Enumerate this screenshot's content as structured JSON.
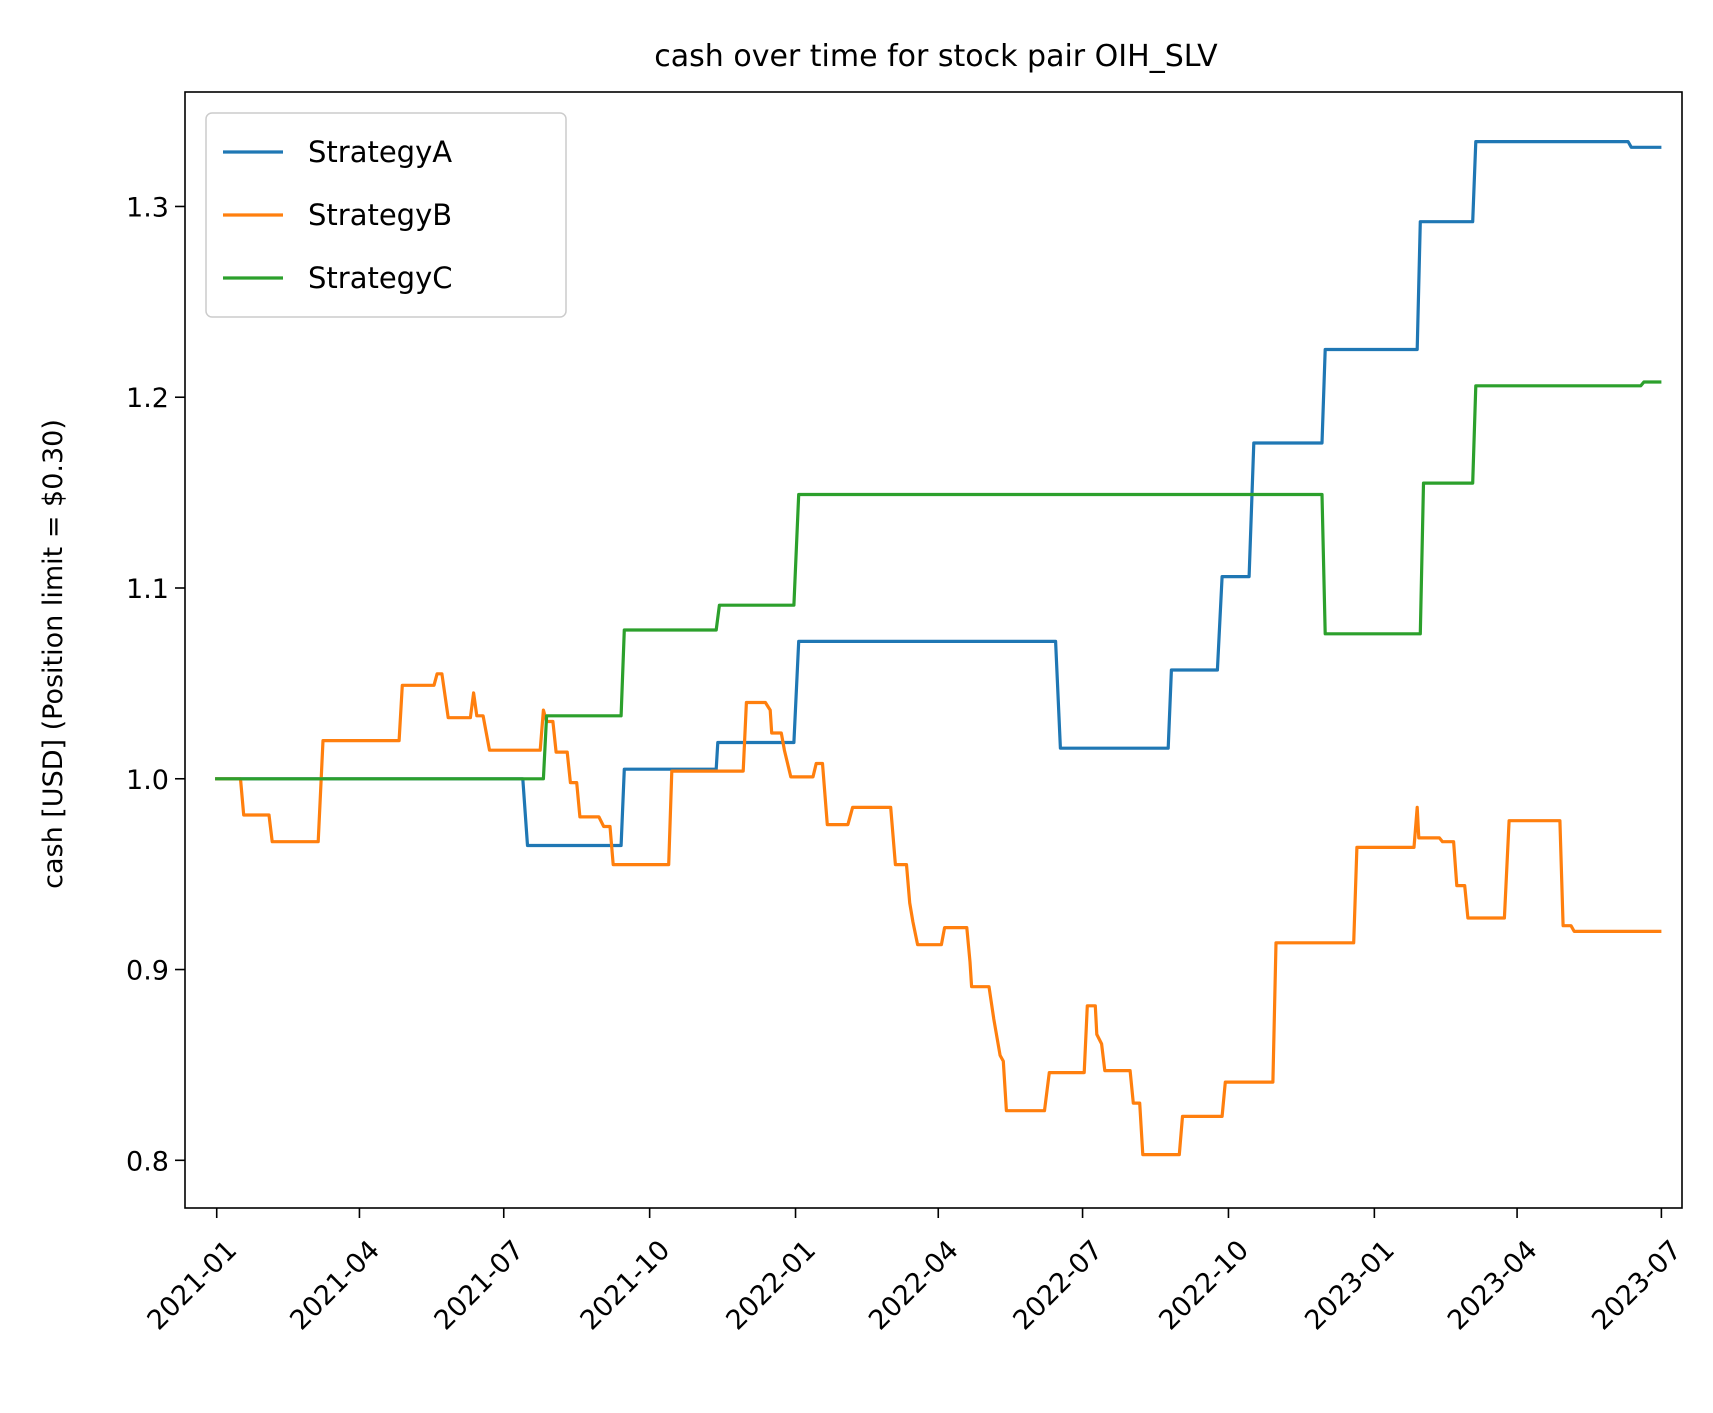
{
  "chart_data": {
    "type": "line",
    "title": "cash over time for stock pair OIH_SLV",
    "xlabel": "",
    "ylabel": "cash [USD] (Position limit = $0.30)",
    "xlim": [
      "2020-12-12",
      "2023-07-14"
    ],
    "ylim": [
      0.775,
      1.36
    ],
    "x_ticks": [
      "2021-01",
      "2021-04",
      "2021-07",
      "2021-10",
      "2022-01",
      "2022-04",
      "2022-07",
      "2022-10",
      "2023-01",
      "2023-04",
      "2023-07"
    ],
    "y_ticks": [
      "0.8",
      "0.9",
      "1.0",
      "1.1",
      "1.2",
      "1.3"
    ],
    "grid": false,
    "legend_position": "upper-left",
    "series": [
      {
        "name": "StrategyA",
        "color": "#1f77b4",
        "points": [
          [
            "2021-01-01",
            1.0
          ],
          [
            "2021-07-13",
            1.0
          ],
          [
            "2021-07-16",
            0.965
          ],
          [
            "2021-09-13",
            0.965
          ],
          [
            "2021-09-15",
            1.005
          ],
          [
            "2021-11-12",
            1.005
          ],
          [
            "2021-11-13",
            1.019
          ],
          [
            "2021-12-31",
            1.019
          ],
          [
            "2022-01-03",
            1.072
          ],
          [
            "2022-06-14",
            1.072
          ],
          [
            "2022-06-17",
            1.016
          ],
          [
            "2022-08-24",
            1.016
          ],
          [
            "2022-08-26",
            1.057
          ],
          [
            "2022-09-24",
            1.057
          ],
          [
            "2022-09-27",
            1.106
          ],
          [
            "2022-10-14",
            1.106
          ],
          [
            "2022-10-17",
            1.176
          ],
          [
            "2022-11-29",
            1.176
          ],
          [
            "2022-12-01",
            1.225
          ],
          [
            "2023-01-28",
            1.225
          ],
          [
            "2023-01-30",
            1.292
          ],
          [
            "2023-03-04",
            1.292
          ],
          [
            "2023-03-06",
            1.334
          ],
          [
            "2023-06-10",
            1.334
          ],
          [
            "2023-06-12",
            1.331
          ],
          [
            "2023-06-30",
            1.331
          ]
        ]
      },
      {
        "name": "StrategyB",
        "color": "#ff7f0e",
        "points": [
          [
            "2021-01-01",
            1.0
          ],
          [
            "2021-01-16",
            1.0
          ],
          [
            "2021-01-18",
            0.981
          ],
          [
            "2021-02-03",
            0.981
          ],
          [
            "2021-02-05",
            0.967
          ],
          [
            "2021-03-06",
            0.967
          ],
          [
            "2021-03-09",
            1.02
          ],
          [
            "2021-04-26",
            1.02
          ],
          [
            "2021-04-28",
            1.049
          ],
          [
            "2021-05-18",
            1.049
          ],
          [
            "2021-05-20",
            1.055
          ],
          [
            "2021-05-23",
            1.055
          ],
          [
            "2021-05-27",
            1.032
          ],
          [
            "2021-06-10",
            1.032
          ],
          [
            "2021-06-12",
            1.045
          ],
          [
            "2021-06-14",
            1.033
          ],
          [
            "2021-06-18",
            1.033
          ],
          [
            "2021-06-22",
            1.015
          ],
          [
            "2021-07-24",
            1.015
          ],
          [
            "2021-07-26",
            1.036
          ],
          [
            "2021-07-28",
            1.03
          ],
          [
            "2021-08-01",
            1.03
          ],
          [
            "2021-08-03",
            1.014
          ],
          [
            "2021-08-10",
            1.014
          ],
          [
            "2021-08-12",
            0.998
          ],
          [
            "2021-08-16",
            0.998
          ],
          [
            "2021-08-18",
            0.98
          ],
          [
            "2021-08-30",
            0.98
          ],
          [
            "2021-09-02",
            0.975
          ],
          [
            "2021-09-06",
            0.975
          ],
          [
            "2021-09-08",
            0.955
          ],
          [
            "2021-10-13",
            0.955
          ],
          [
            "2021-10-15",
            1.004
          ],
          [
            "2021-11-29",
            1.004
          ],
          [
            "2021-12-01",
            1.04
          ],
          [
            "2021-12-13",
            1.04
          ],
          [
            "2021-12-16",
            1.036
          ],
          [
            "2021-12-17",
            1.024
          ],
          [
            "2021-12-23",
            1.024
          ],
          [
            "2021-12-25",
            1.015
          ],
          [
            "2021-12-29",
            1.001
          ],
          [
            "2022-01-12",
            1.001
          ],
          [
            "2022-01-14",
            1.008
          ],
          [
            "2022-01-18",
            1.008
          ],
          [
            "2022-01-21",
            0.976
          ],
          [
            "2022-02-03",
            0.976
          ],
          [
            "2022-02-06",
            0.985
          ],
          [
            "2022-03-02",
            0.985
          ],
          [
            "2022-03-05",
            0.955
          ],
          [
            "2022-03-12",
            0.955
          ],
          [
            "2022-03-14",
            0.935
          ],
          [
            "2022-03-16",
            0.925
          ],
          [
            "2022-03-19",
            0.913
          ],
          [
            "2022-04-03",
            0.913
          ],
          [
            "2022-04-05",
            0.922
          ],
          [
            "2022-04-19",
            0.922
          ],
          [
            "2022-04-21",
            0.904
          ],
          [
            "2022-04-22",
            0.891
          ],
          [
            "2022-05-03",
            0.891
          ],
          [
            "2022-05-06",
            0.874
          ],
          [
            "2022-05-10",
            0.855
          ],
          [
            "2022-05-12",
            0.852
          ],
          [
            "2022-05-14",
            0.826
          ],
          [
            "2022-06-07",
            0.826
          ],
          [
            "2022-06-10",
            0.846
          ],
          [
            "2022-06-29",
            0.846
          ],
          [
            "2022-07-02",
            0.846
          ],
          [
            "2022-07-04",
            0.881
          ],
          [
            "2022-07-09",
            0.881
          ],
          [
            "2022-07-10",
            0.866
          ],
          [
            "2022-07-13",
            0.861
          ],
          [
            "2022-07-15",
            0.847
          ],
          [
            "2022-07-31",
            0.847
          ],
          [
            "2022-08-02",
            0.83
          ],
          [
            "2022-08-06",
            0.83
          ],
          [
            "2022-08-08",
            0.803
          ],
          [
            "2022-08-31",
            0.803
          ],
          [
            "2022-09-02",
            0.823
          ],
          [
            "2022-09-27",
            0.823
          ],
          [
            "2022-09-29",
            0.841
          ],
          [
            "2022-10-29",
            0.841
          ],
          [
            "2022-10-31",
            0.914
          ],
          [
            "2022-12-19",
            0.914
          ],
          [
            "2022-12-21",
            0.964
          ],
          [
            "2023-01-26",
            0.964
          ],
          [
            "2023-01-28",
            0.985
          ],
          [
            "2023-01-29",
            0.969
          ],
          [
            "2023-02-11",
            0.969
          ],
          [
            "2023-02-13",
            0.967
          ],
          [
            "2023-02-20",
            0.967
          ],
          [
            "2023-02-22",
            0.944
          ],
          [
            "2023-02-27",
            0.944
          ],
          [
            "2023-03-01",
            0.927
          ],
          [
            "2023-03-24",
            0.927
          ],
          [
            "2023-03-27",
            0.978
          ],
          [
            "2023-04-28",
            0.978
          ],
          [
            "2023-04-30",
            0.923
          ],
          [
            "2023-05-05",
            0.923
          ],
          [
            "2023-05-07",
            0.92
          ],
          [
            "2023-06-30",
            0.92
          ]
        ]
      },
      {
        "name": "StrategyC",
        "color": "#2ca02c",
        "points": [
          [
            "2021-01-01",
            1.0
          ],
          [
            "2021-07-26",
            1.0
          ],
          [
            "2021-07-28",
            1.033
          ],
          [
            "2021-09-13",
            1.033
          ],
          [
            "2021-09-15",
            1.078
          ],
          [
            "2021-11-12",
            1.078
          ],
          [
            "2021-11-14",
            1.091
          ],
          [
            "2021-12-31",
            1.091
          ],
          [
            "2022-01-03",
            1.149
          ],
          [
            "2022-11-29",
            1.149
          ],
          [
            "2022-12-01",
            1.076
          ],
          [
            "2023-01-30",
            1.076
          ],
          [
            "2023-02-01",
            1.155
          ],
          [
            "2023-03-04",
            1.155
          ],
          [
            "2023-03-06",
            1.206
          ],
          [
            "2023-06-18",
            1.206
          ],
          [
            "2023-06-20",
            1.208
          ],
          [
            "2023-06-30",
            1.208
          ]
        ]
      }
    ]
  }
}
